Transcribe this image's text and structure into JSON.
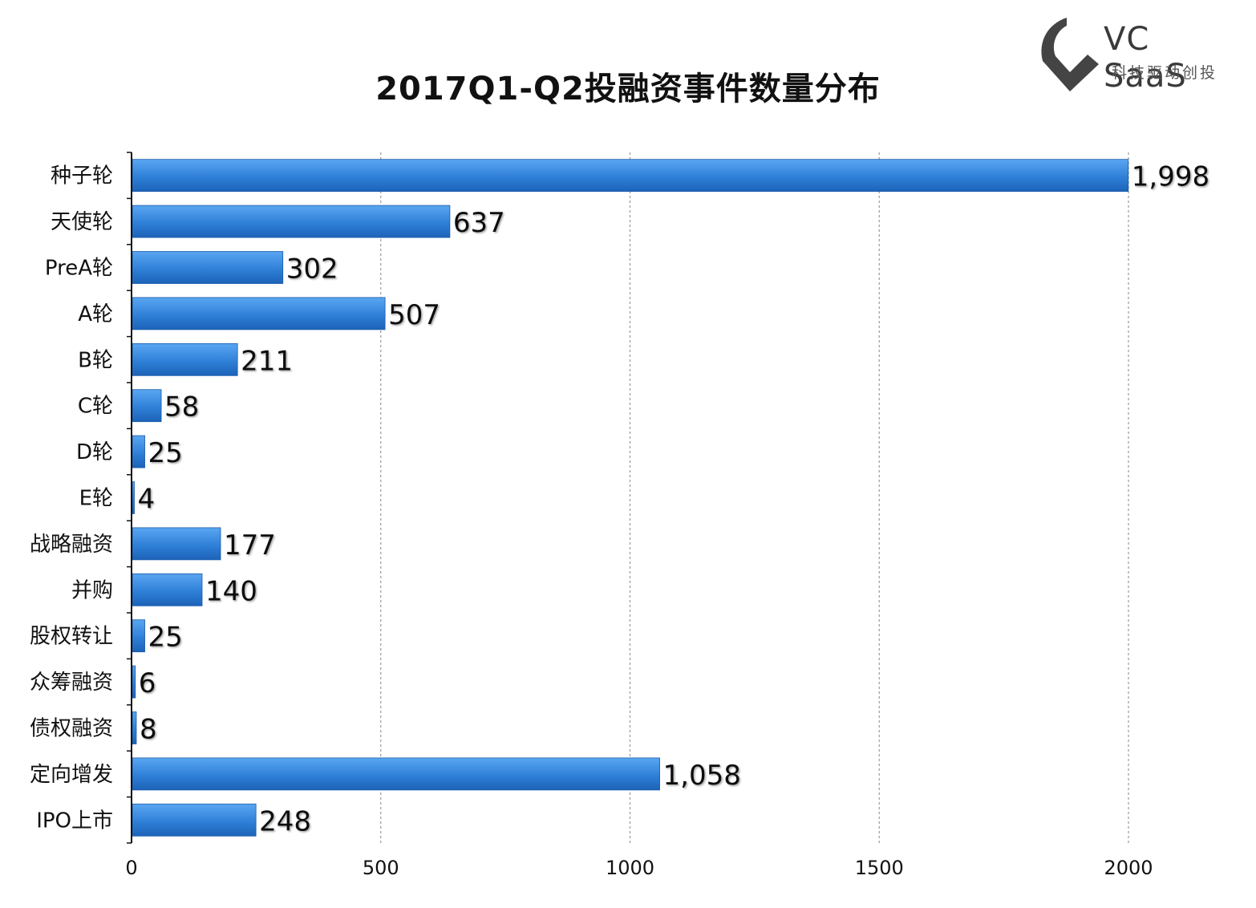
{
  "chart_data": {
    "type": "bar",
    "orientation": "horizontal",
    "title": "2017Q1-Q2投融资事件数量分布",
    "categories": [
      "种子轮",
      "天使轮",
      "PreA轮",
      "A轮",
      "B轮",
      "C轮",
      "D轮",
      "E轮",
      "战略融资",
      "并购",
      "股权转让",
      "众筹融资",
      "债权融资",
      "定向增发",
      "IPO上市"
    ],
    "values": [
      1998,
      637,
      302,
      507,
      211,
      58,
      25,
      4,
      177,
      140,
      25,
      6,
      8,
      1058,
      248
    ],
    "value_labels": [
      "1,998",
      "637",
      "302",
      "507",
      "211",
      "58",
      "25",
      "4",
      "177",
      "140",
      "25",
      "6",
      "8",
      "1,058",
      "248"
    ],
    "xlim": [
      0,
      2200
    ],
    "xticks": [
      0,
      500,
      1000,
      1500,
      2000
    ],
    "xtick_labels": [
      "0",
      "500",
      "1000",
      "1500",
      "2000"
    ],
    "grid": "vertical dashed",
    "bar_color": "#2f80d8"
  },
  "logo": {
    "name": "VC SaaS",
    "slogan": "科技驱动创投",
    "icon": "vc-saas-logo-icon"
  }
}
